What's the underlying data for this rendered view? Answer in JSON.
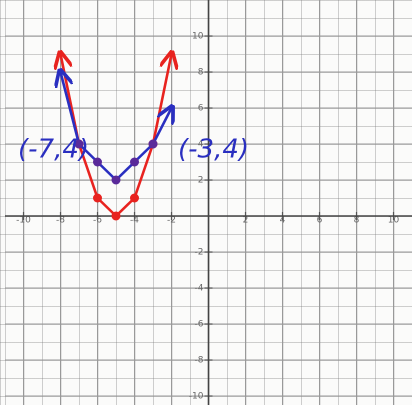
{
  "chart_data": {
    "type": "line",
    "x": [
      -8,
      -7,
      -6,
      -5,
      -4,
      -3,
      -2
    ],
    "series": [
      {
        "color": "#e8231f",
        "values": [
          9,
          4,
          1,
          0,
          1,
          4,
          9
        ]
      },
      {
        "color": "#2a2fc0",
        "values": [
          8,
          4,
          3,
          2,
          3,
          4,
          6
        ]
      }
    ],
    "annotations": [
      "(-7,4)",
      "(-3,4)"
    ],
    "xlim": [
      -11,
      11
    ],
    "ylim": [
      -10.5,
      12
    ],
    "xticks": [
      -10,
      -8,
      -6,
      -4,
      -2,
      2,
      4,
      6,
      8,
      10
    ],
    "yticks": [
      -10,
      -8,
      -6,
      -4,
      -2,
      2,
      4,
      6,
      8,
      10
    ],
    "grid": true
  }
}
